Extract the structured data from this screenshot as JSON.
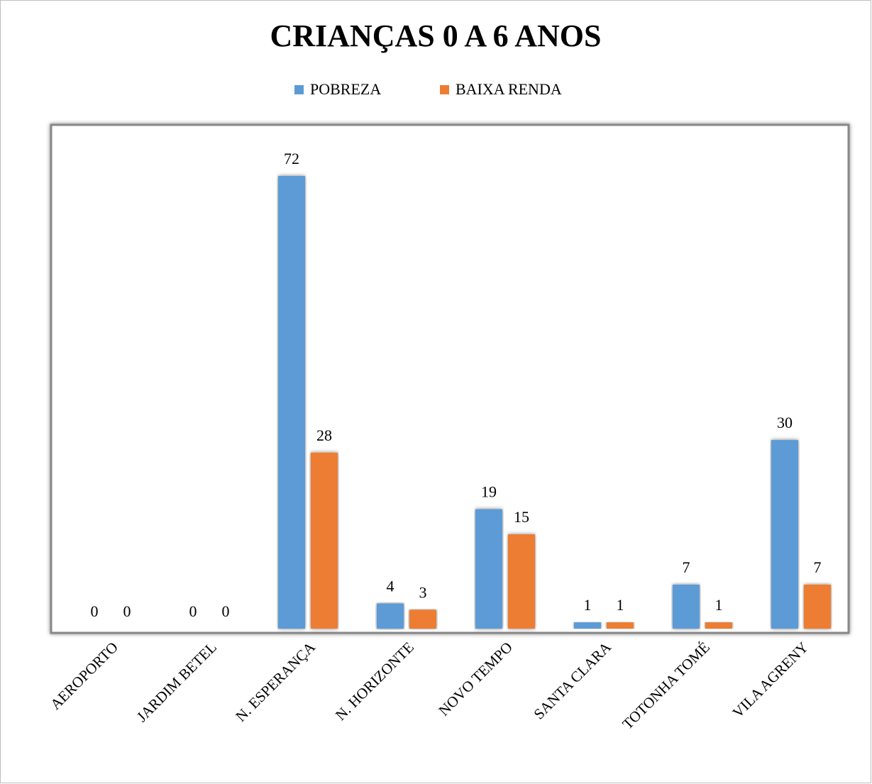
{
  "chart_data": {
    "type": "bar",
    "title": "CRIANÇAS 0 A 6 ANOS",
    "categories": [
      "AEROPORTO",
      "JARDIM BETEL",
      "N. ESPERANÇA",
      "N. HORIZONTE",
      "NOVO TEMPO",
      "SANTA CLARA",
      "TOTONHA TOMÉ",
      "VILA AGRENY"
    ],
    "series": [
      {
        "name": "POBREZA",
        "color": "#5b9bd5",
        "values": [
          0,
          0,
          72,
          4,
          19,
          1,
          7,
          30
        ]
      },
      {
        "name": "BAIXA RENDA",
        "color": "#ed7d31",
        "values": [
          0,
          0,
          28,
          3,
          15,
          1,
          1,
          7
        ]
      }
    ],
    "legend": "top"
  }
}
